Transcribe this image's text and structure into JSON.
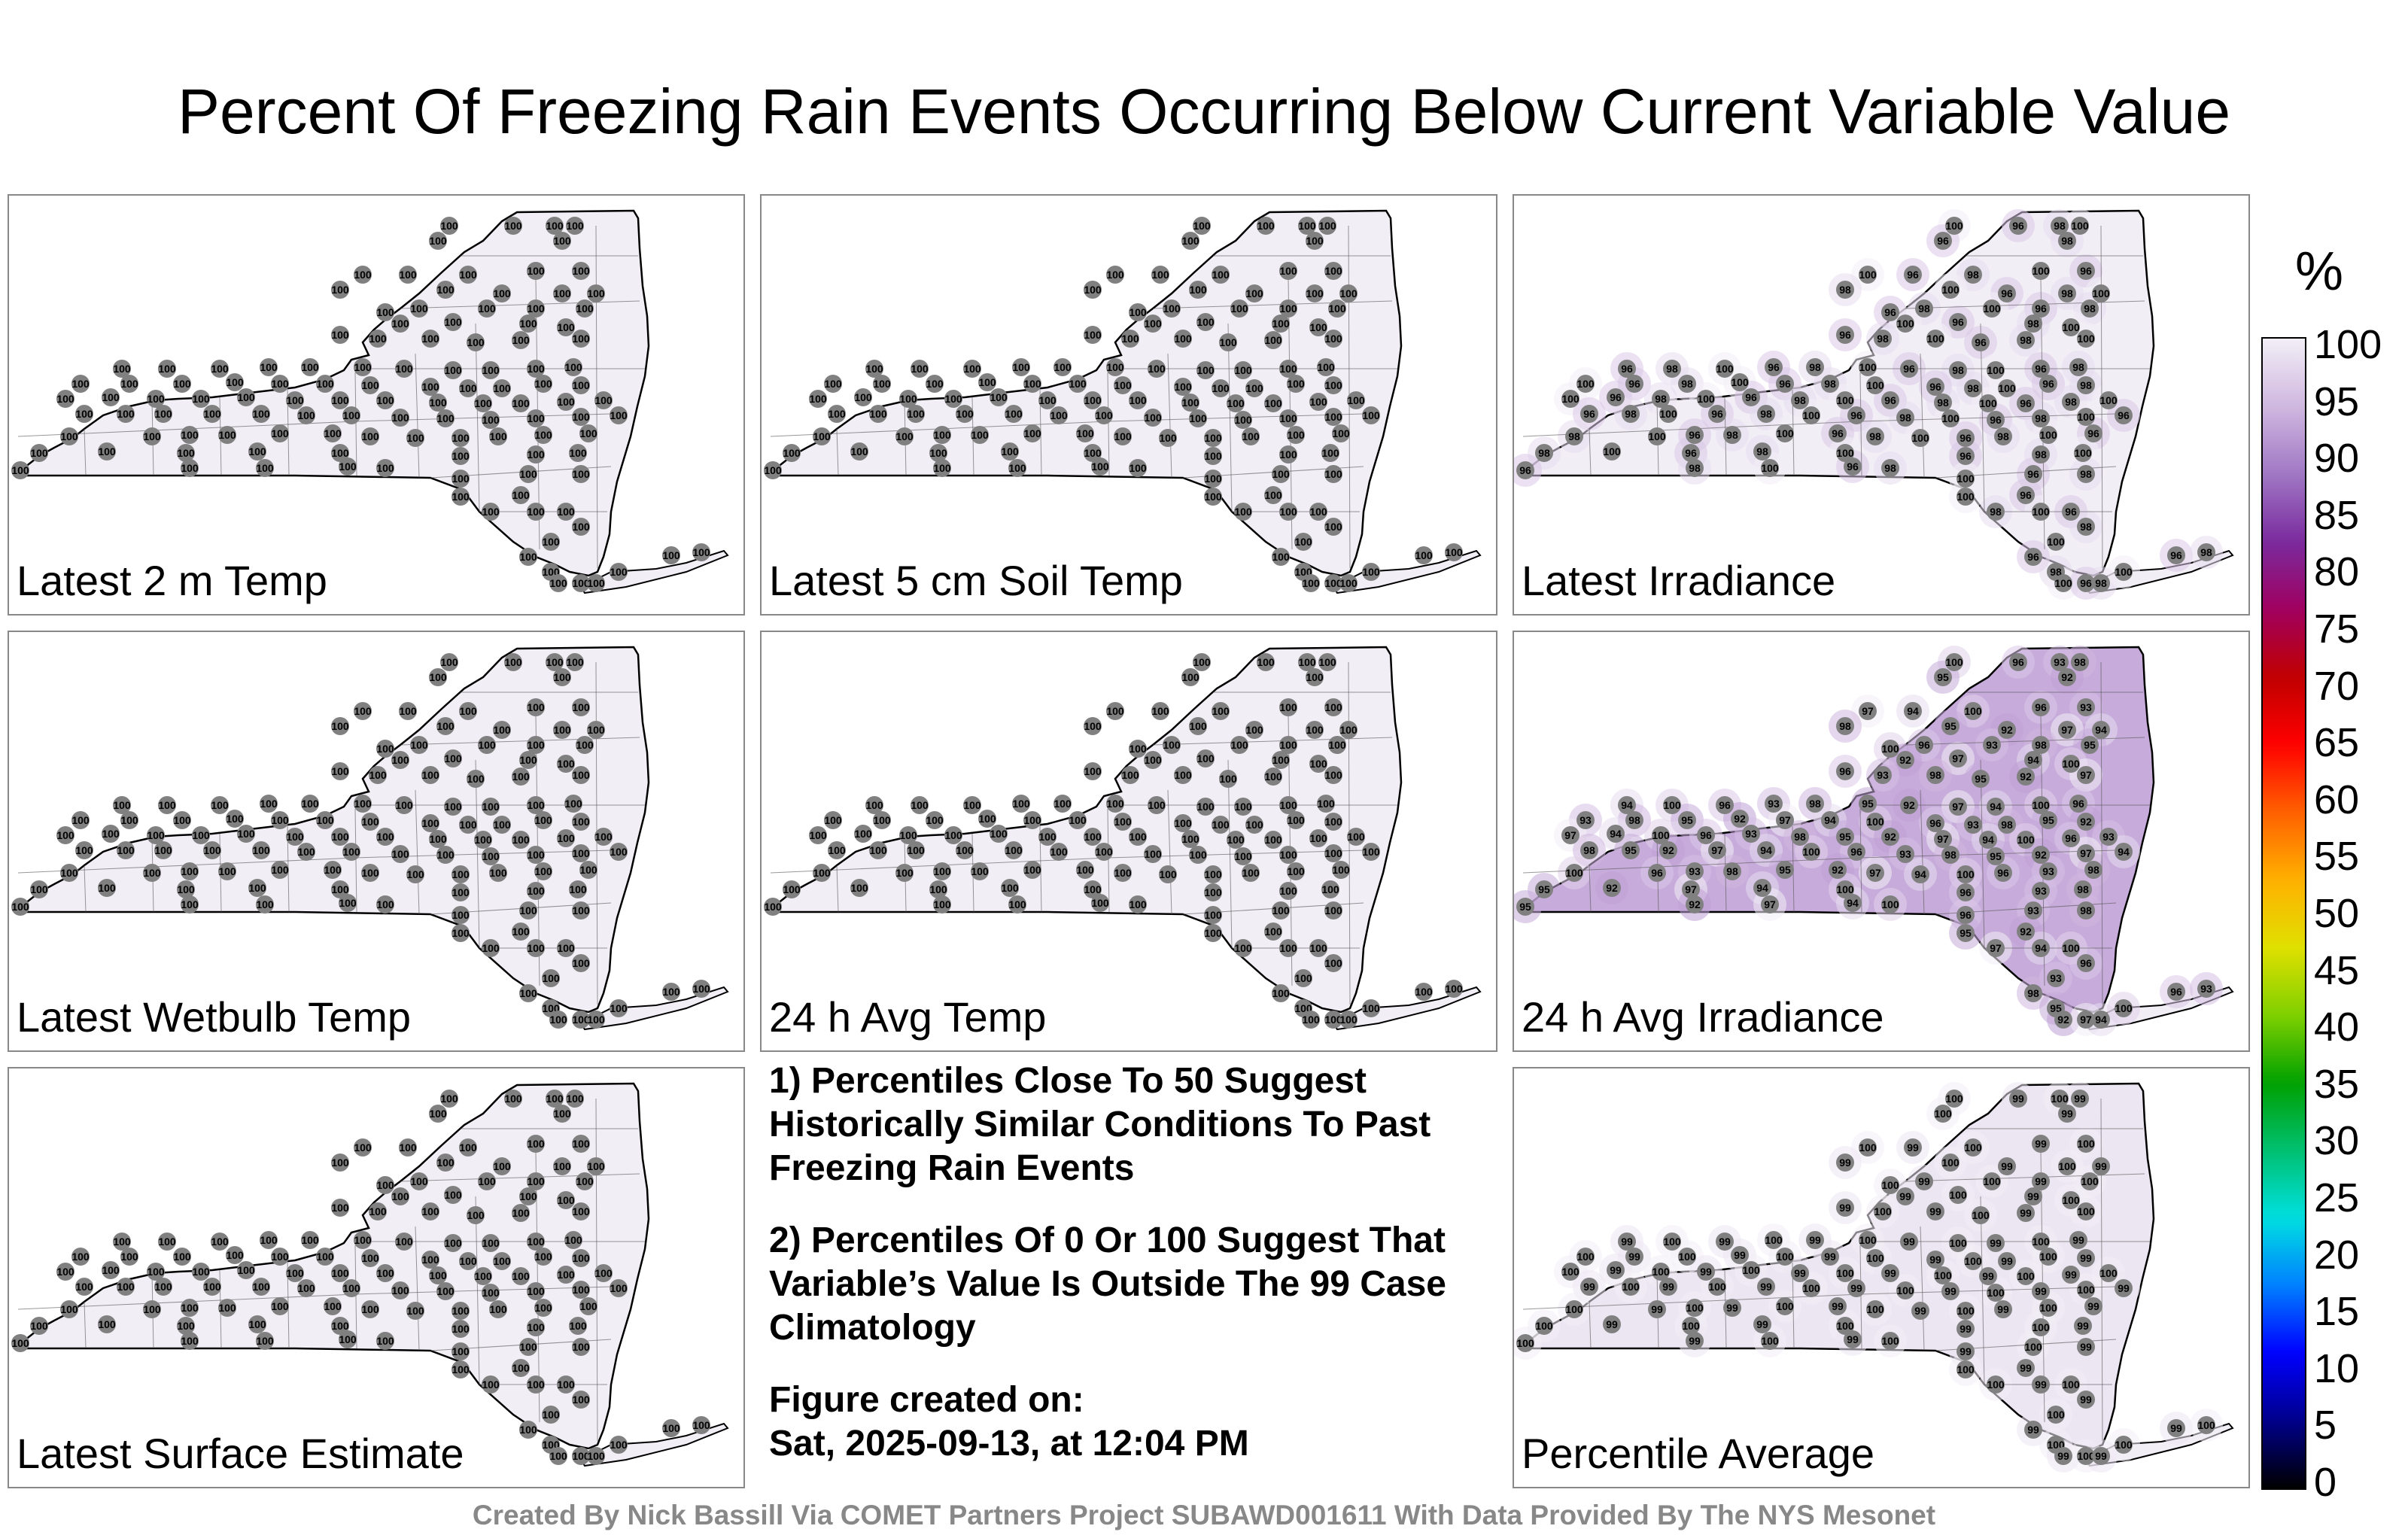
{
  "title": "Percent Of Freezing Rain Events Occurring Below Current Variable Value",
  "chart_data": {
    "type": "heatmap",
    "title": "Percent Of Freezing Rain Events Occurring Below Current Variable Value",
    "colorbar": {
      "unit": "%",
      "ticks": [
        "100",
        "95",
        "90",
        "85",
        "80",
        "75",
        "70",
        "65",
        "60",
        "55",
        "50",
        "45",
        "40",
        "35",
        "30",
        "25",
        "20",
        "15",
        "10",
        "5",
        "0"
      ],
      "range": [
        0,
        100
      ],
      "colors": [
        "#000000",
        "#00008b",
        "#0000ff",
        "#0080ff",
        "#00e0e0",
        "#00c070",
        "#00a000",
        "#80d000",
        "#e0e000",
        "#ffb000",
        "#ff6000",
        "#ff0000",
        "#c00000",
        "#a00060",
        "#7a2b9e",
        "#a078c4",
        "#d0b8e0",
        "#f2eef6"
      ]
    },
    "panels": [
      {
        "label": "Latest 2 m Temp",
        "values": [
          100
        ],
        "dominant_value": 100
      },
      {
        "label": "Latest 5 cm Soil Temp",
        "values": [
          100
        ],
        "dominant_value": 100
      },
      {
        "label": "Latest Irradiance",
        "values": [
          100,
          98,
          96
        ],
        "dominant_value": 100
      },
      {
        "label": "Latest Wetbulb Temp",
        "values": [
          100
        ],
        "dominant_value": 100
      },
      {
        "label": "24 h Avg Temp",
        "values": [
          100
        ],
        "dominant_value": 100
      },
      {
        "label": "24 h Avg Irradiance",
        "values": [
          92,
          93,
          94,
          95,
          96,
          97,
          98,
          100
        ],
        "dominant_value": 93
      },
      {
        "label": "Latest Surface Estimate",
        "values": [
          100
        ],
        "dominant_value": 100
      },
      {
        "label": "Percentile Average",
        "values": [
          99,
          100
        ],
        "dominant_value": 99
      }
    ]
  },
  "notes": [
    "1) Percentiles Close To 50 Suggest Historically Similar Conditions To Past Freezing Rain Events",
    "2) Percentiles Of 0 Or 100 Suggest That Variable’s Value Is Outside The 99 Case Climatology"
  ],
  "created_label": "Figure created on:",
  "created_value": "Sat, 2025-09-13, at 12:04 PM",
  "footer": "Created By Nick Bassill Via COMET Partners Project SUBAWD001611 With Data Provided By The NYS Mesonet"
}
